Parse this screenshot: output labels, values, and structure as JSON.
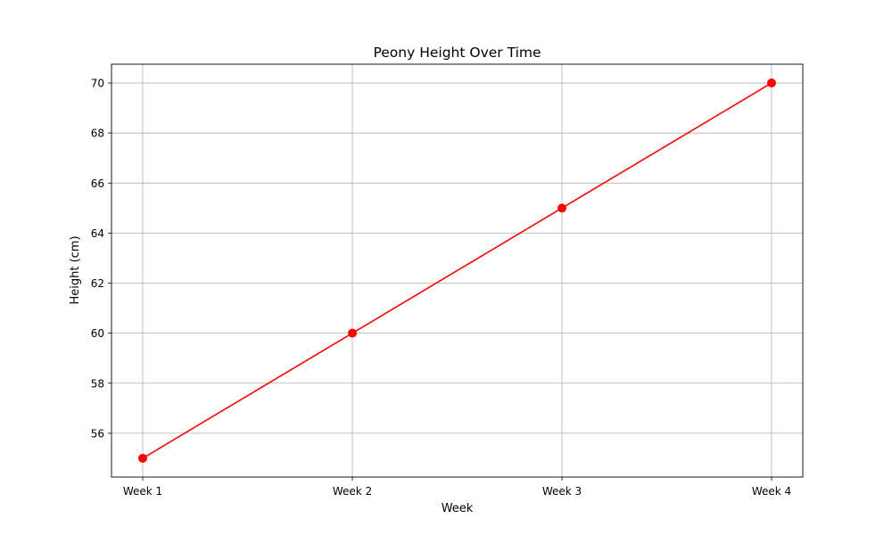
{
  "chart_data": {
    "type": "line",
    "title": "Peony Height Over Time",
    "xlabel": "Week",
    "ylabel": "Height (cm)",
    "categories": [
      "Week 1",
      "Week 2",
      "Week 3",
      "Week 4"
    ],
    "series": [
      {
        "name": "Height",
        "values": [
          55,
          60,
          65,
          70
        ],
        "color": "#ff0000",
        "marker": "circle"
      }
    ],
    "ylim": [
      54.25,
      70.75
    ],
    "yticks": [
      56,
      58,
      60,
      62,
      64,
      66,
      68,
      70
    ],
    "grid": true,
    "grid_color": "#b0b0b0"
  }
}
